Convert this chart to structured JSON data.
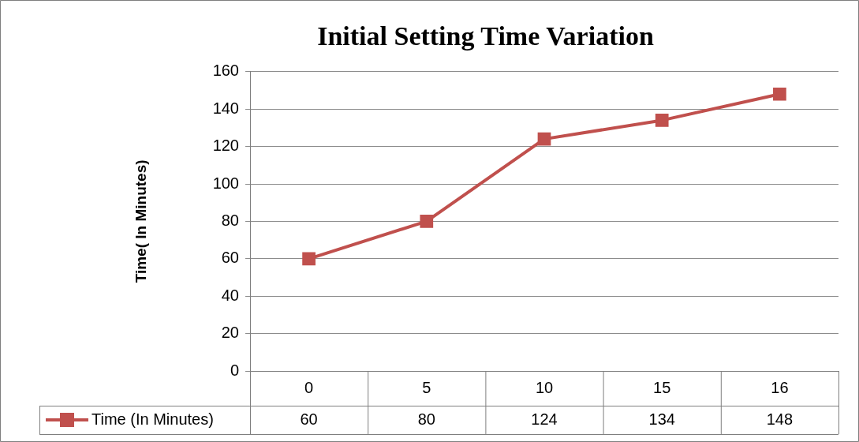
{
  "chart_data": {
    "type": "line",
    "title": "Initial Setting Time Variation",
    "ylabel": "Time( In Minutes)",
    "categories": [
      "0",
      "5",
      "10",
      "15",
      "16"
    ],
    "series": [
      {
        "name": "Time (In Minutes)",
        "color": "#c0504d",
        "values": [
          60,
          80,
          124,
          134,
          148
        ]
      }
    ],
    "ylim": [
      0,
      160
    ],
    "yticks": [
      0,
      20,
      40,
      60,
      80,
      100,
      120,
      140,
      160
    ],
    "grid": "y",
    "legend": "bottom",
    "marker": "square",
    "line_style": "solid",
    "data_labels": true
  }
}
